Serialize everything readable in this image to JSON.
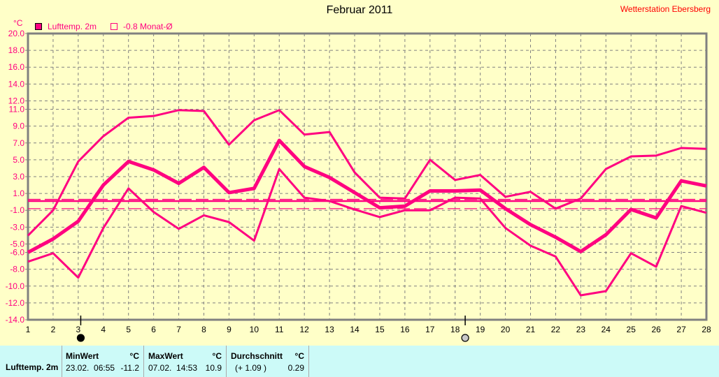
{
  "title": "Februar 2011",
  "station": "Wetterstation Ebersberg",
  "unit": "°C",
  "legend": [
    {
      "label": "Lufttemp. 2m",
      "color": "#ff0080"
    },
    {
      "label": "-0.8 Monat-Ø",
      "color": "#ff0080"
    }
  ],
  "colors": {
    "series": "#ff0080",
    "background": "#ffffc8",
    "panel": "#ccfaf8",
    "grid": "#808080"
  },
  "chart_data": {
    "type": "line",
    "title": "Februar 2011",
    "ylabel": "°C",
    "x": [
      1,
      2,
      3,
      4,
      5,
      6,
      7,
      8,
      9,
      10,
      11,
      12,
      13,
      14,
      15,
      16,
      17,
      18,
      19,
      20,
      21,
      22,
      23,
      24,
      25,
      26,
      27,
      28
    ],
    "xlim": [
      1,
      28
    ],
    "ylim": [
      -14,
      20
    ],
    "yticks": [
      "20.0",
      "18.0",
      "16.0",
      "14.0",
      "12.0",
      "11.0",
      "9.0",
      "7.0",
      "5.0",
      "3.0",
      "1.0",
      "-1.0",
      "-3.0",
      "-5.0",
      "-6.0",
      "-8.0",
      "-10.0",
      "-12.0",
      "-14.0"
    ],
    "ytick_values": [
      20,
      18,
      16,
      14,
      12,
      11,
      9,
      7,
      5,
      3,
      1,
      -1,
      -3,
      -5,
      -6,
      -8,
      -10,
      -12,
      -14
    ],
    "grid": true,
    "legend_position": "top-left",
    "series": [
      {
        "role": "max",
        "values": [
          -4.0,
          -1.0,
          4.8,
          7.8,
          10.0,
          10.2,
          10.9,
          10.8,
          6.8,
          9.7,
          10.9,
          8.0,
          8.3,
          3.5,
          0.5,
          0.4,
          5.0,
          2.6,
          3.2,
          0.6,
          1.2,
          -0.8,
          0.4,
          3.9,
          5.4,
          5.5,
          6.4,
          6.3
        ]
      },
      {
        "role": "mean",
        "name": "Lufttemp. 2m",
        "values": [
          -6.0,
          -4.4,
          -2.3,
          2.0,
          4.8,
          3.8,
          2.2,
          4.1,
          1.1,
          1.6,
          7.3,
          4.2,
          2.9,
          1.1,
          -0.7,
          -0.5,
          1.3,
          1.3,
          1.4,
          -0.8,
          -2.7,
          -4.2,
          -5.9,
          -3.9,
          -0.9,
          -1.9,
          2.5,
          1.9
        ]
      },
      {
        "role": "min",
        "values": [
          -7.1,
          -6.1,
          -9.0,
          -3.1,
          1.6,
          -1.2,
          -3.2,
          -1.6,
          -2.4,
          -4.6,
          3.9,
          0.5,
          0.1,
          -0.9,
          -1.8,
          -1.0,
          -1.0,
          0.5,
          0.4,
          -3.1,
          -5.2,
          -6.5,
          -11.1,
          -10.6,
          -6.1,
          -7.7,
          -0.5,
          -1.3
        ]
      }
    ],
    "reference_lines": [
      {
        "label": "-0.8 Monat-Ø",
        "value": -0.8,
        "style": "dashed"
      },
      {
        "value": 0.29,
        "style": "dashed"
      },
      {
        "value": 0.1,
        "style": "solid"
      }
    ],
    "moon_phases": [
      {
        "day": 3.1,
        "phase": "new-moon"
      },
      {
        "day": 18.4,
        "phase": "full-moon"
      }
    ]
  },
  "summary": {
    "row_label": "Lufttemp. 2m",
    "min": {
      "header": "MinWert",
      "unit": "°C",
      "datetime": "23.02.  06:55",
      "value": "-11.2"
    },
    "max": {
      "header": "MaxWert",
      "unit": "°C",
      "datetime": "07.02.  14:53",
      "value": "10.9"
    },
    "avg": {
      "header": "Durchschnitt",
      "unit": "°C",
      "delta": "(+ 1.09 )",
      "value": "0.29"
    }
  }
}
